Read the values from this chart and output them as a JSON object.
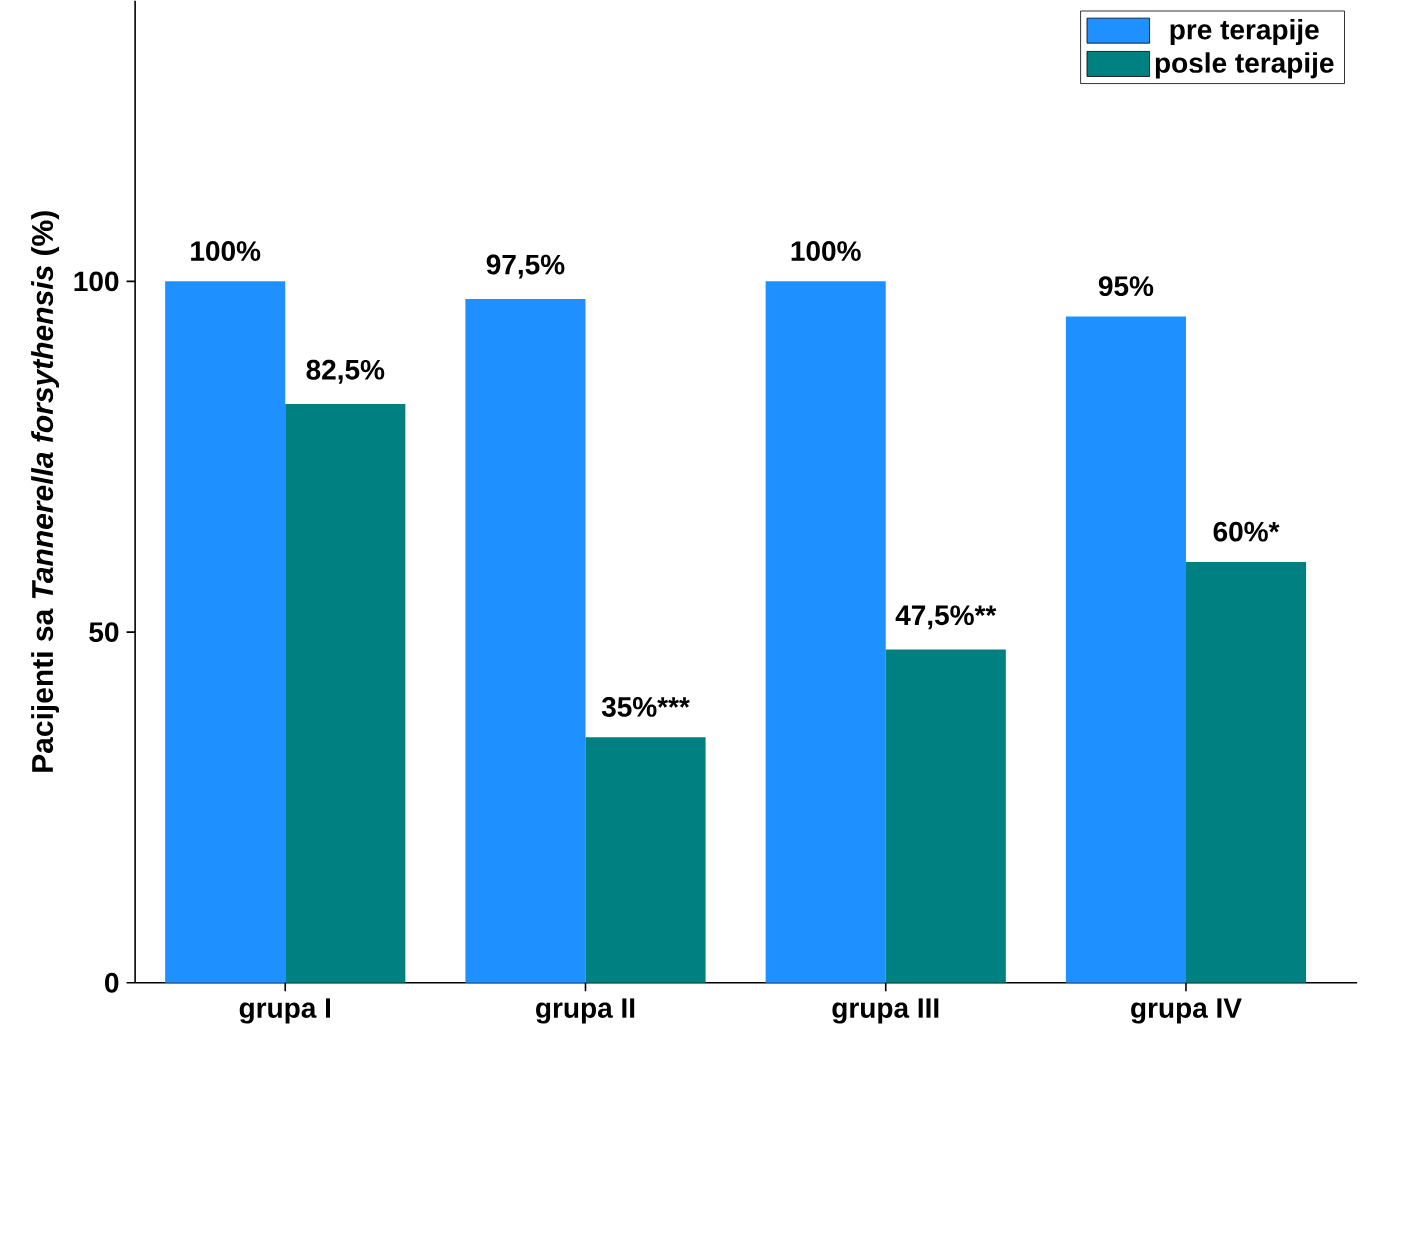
{
  "chart_data": {
    "type": "bar",
    "ylabel": "Pacijenti sa *Tannerella forsythensis* (%)",
    "categories": [
      "grupa I",
      "grupa II",
      "grupa III",
      "grupa IV"
    ],
    "series": [
      {
        "name": "pre terapije",
        "color": "#1e90ff",
        "values": [
          100,
          97.5,
          100,
          95
        ],
        "value_labels": [
          "100%",
          "97,5%",
          "100%",
          "95%"
        ]
      },
      {
        "name": "posle terapije",
        "color": "#008080",
        "values": [
          82.5,
          35,
          47.5,
          60
        ],
        "value_labels": [
          "82,5%",
          "35%***",
          "47,5%**",
          "60%*"
        ]
      }
    ],
    "ylim": [
      0,
      140
    ],
    "yticks": [
      0,
      50,
      100
    ],
    "legend": "top right"
  }
}
